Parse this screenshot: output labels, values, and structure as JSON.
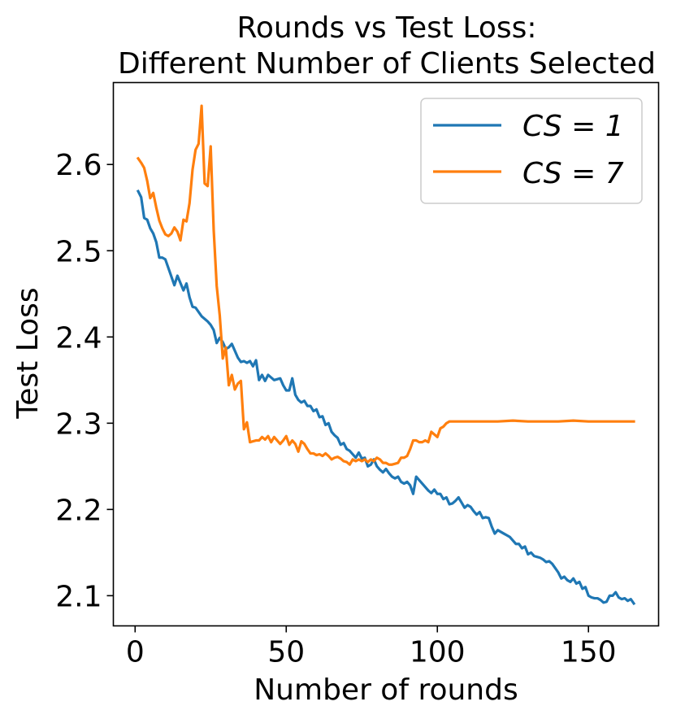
{
  "chart_data": {
    "type": "line",
    "title": "Rounds vs Test Loss:",
    "subtitle": "Different Number of Clients Selected",
    "xlabel": "Number of rounds",
    "ylabel": "Test Loss",
    "xlim": [
      -7.2,
      173.2
    ],
    "ylim": [
      2.065,
      2.695
    ],
    "xticks": [
      0,
      50,
      100,
      150
    ],
    "yticks": [
      2.1,
      2.2,
      2.3,
      2.4,
      2.5,
      2.6
    ],
    "ytick_labels": [
      "2.1",
      "2.2",
      "2.3",
      "2.4",
      "2.5",
      "2.6"
    ],
    "xtick_labels": [
      "0",
      "50",
      "100",
      "150"
    ],
    "grid": false,
    "legend_position": "upper right",
    "series": [
      {
        "name": "CS = 1",
        "color": "#1f77b4",
        "points": [
          [
            1,
            2.569
          ],
          [
            2,
            2.562
          ],
          [
            3,
            2.538
          ],
          [
            4,
            2.536
          ],
          [
            5,
            2.526
          ],
          [
            6,
            2.52
          ],
          [
            7,
            2.51
          ],
          [
            8,
            2.492
          ],
          [
            9,
            2.492
          ],
          [
            10,
            2.49
          ],
          [
            12,
            2.47
          ],
          [
            13,
            2.46
          ],
          [
            14,
            2.471
          ],
          [
            16,
            2.454
          ],
          [
            17,
            2.462
          ],
          [
            18,
            2.446
          ],
          [
            19,
            2.435
          ],
          [
            20,
            2.434
          ],
          [
            22,
            2.424
          ],
          [
            24,
            2.418
          ],
          [
            25,
            2.414
          ],
          [
            26,
            2.408
          ],
          [
            27,
            2.393
          ],
          [
            28,
            2.399
          ],
          [
            29,
            2.394
          ],
          [
            30,
            2.386
          ],
          [
            31,
            2.388
          ],
          [
            32,
            2.392
          ],
          [
            33,
            2.384
          ],
          [
            34,
            2.376
          ],
          [
            35,
            2.371
          ],
          [
            36,
            2.372
          ],
          [
            37,
            2.37
          ],
          [
            38,
            2.372
          ],
          [
            39,
            2.366
          ],
          [
            40,
            2.373
          ],
          [
            41,
            2.35
          ],
          [
            42,
            2.356
          ],
          [
            43,
            2.349
          ],
          [
            44,
            2.356
          ],
          [
            46,
            2.35
          ],
          [
            48,
            2.352
          ],
          [
            49,
            2.344
          ],
          [
            50,
            2.338
          ],
          [
            51,
            2.338
          ],
          [
            52,
            2.352
          ],
          [
            53,
            2.333
          ],
          [
            54,
            2.327
          ],
          [
            55,
            2.324
          ],
          [
            56,
            2.326
          ],
          [
            57,
            2.32
          ],
          [
            58,
            2.32
          ],
          [
            59,
            2.314
          ],
          [
            60,
            2.316
          ],
          [
            61,
            2.307
          ],
          [
            62,
            2.308
          ],
          [
            63,
            2.298
          ],
          [
            64,
            2.3
          ],
          [
            65,
            2.29
          ],
          [
            66,
            2.286
          ],
          [
            67,
            2.283
          ],
          [
            68,
            2.275
          ],
          [
            69,
            2.277
          ],
          [
            70,
            2.27
          ],
          [
            71,
            2.268
          ],
          [
            72,
            2.264
          ],
          [
            73,
            2.26
          ],
          [
            74,
            2.266
          ],
          [
            75,
            2.259
          ],
          [
            76,
            2.26
          ],
          [
            77,
            2.25
          ],
          [
            78,
            2.252
          ],
          [
            79,
            2.258
          ],
          [
            80,
            2.25
          ],
          [
            81,
            2.246
          ],
          [
            82,
            2.243
          ],
          [
            83,
            2.247
          ],
          [
            84,
            2.242
          ],
          [
            85,
            2.238
          ],
          [
            86,
            2.236
          ],
          [
            87,
            2.238
          ],
          [
            88,
            2.232
          ],
          [
            89,
            2.23
          ],
          [
            90,
            2.232
          ],
          [
            91,
            2.228
          ],
          [
            92,
            2.218
          ],
          [
            93,
            2.238
          ],
          [
            94,
            2.234
          ],
          [
            95,
            2.23
          ],
          [
            96,
            2.226
          ],
          [
            97,
            2.222
          ],
          [
            98,
            2.219
          ],
          [
            99,
            2.223
          ],
          [
            100,
            2.218
          ],
          [
            101,
            2.218
          ],
          [
            102,
            2.212
          ],
          [
            103,
            2.214
          ],
          [
            104,
            2.206
          ],
          [
            105,
            2.207
          ],
          [
            106,
            2.21
          ],
          [
            107,
            2.214
          ],
          [
            108,
            2.208
          ],
          [
            109,
            2.202
          ],
          [
            110,
            2.205
          ],
          [
            111,
            2.203
          ],
          [
            112,
            2.198
          ],
          [
            113,
            2.194
          ],
          [
            114,
            2.197
          ],
          [
            115,
            2.19
          ],
          [
            116,
            2.191
          ],
          [
            117,
            2.19
          ],
          [
            118,
            2.18
          ],
          [
            119,
            2.172
          ],
          [
            120,
            2.176
          ],
          [
            121,
            2.174
          ],
          [
            122,
            2.172
          ],
          [
            123,
            2.17
          ],
          [
            124,
            2.168
          ],
          [
            125,
            2.164
          ],
          [
            126,
            2.16
          ],
          [
            127,
            2.16
          ],
          [
            128,
            2.155
          ],
          [
            129,
            2.157
          ],
          [
            130,
            2.148
          ],
          [
            131,
            2.15
          ],
          [
            132,
            2.146
          ],
          [
            133,
            2.145
          ],
          [
            134,
            2.144
          ],
          [
            135,
            2.142
          ],
          [
            136,
            2.139
          ],
          [
            137,
            2.14
          ],
          [
            138,
            2.137
          ],
          [
            139,
            2.132
          ],
          [
            140,
            2.127
          ],
          [
            141,
            2.12
          ],
          [
            142,
            2.122
          ],
          [
            143,
            2.118
          ],
          [
            144,
            2.116
          ],
          [
            145,
            2.12
          ],
          [
            146,
            2.114
          ],
          [
            147,
            2.116
          ],
          [
            148,
            2.108
          ],
          [
            149,
            2.11
          ],
          [
            150,
            2.1
          ],
          [
            151,
            2.098
          ],
          [
            152,
            2.097
          ],
          [
            153,
            2.097
          ],
          [
            154,
            2.095
          ],
          [
            155,
            2.092
          ],
          [
            156,
            2.093
          ],
          [
            157,
            2.1
          ],
          [
            158,
            2.1
          ],
          [
            159,
            2.104
          ],
          [
            160,
            2.098
          ],
          [
            161,
            2.096
          ],
          [
            162,
            2.097
          ],
          [
            163,
            2.094
          ],
          [
            164,
            2.096
          ],
          [
            165,
            2.091
          ]
        ]
      },
      {
        "name": "CS = 7",
        "color": "#ff7f0e",
        "points": [
          [
            1,
            2.607
          ],
          [
            2,
            2.602
          ],
          [
            3,
            2.596
          ],
          [
            4,
            2.581
          ],
          [
            5,
            2.561
          ],
          [
            6,
            2.567
          ],
          [
            7,
            2.55
          ],
          [
            8,
            2.535
          ],
          [
            9,
            2.526
          ],
          [
            10,
            2.519
          ],
          [
            11,
            2.517
          ],
          [
            12,
            2.52
          ],
          [
            13,
            2.527
          ],
          [
            14,
            2.522
          ],
          [
            15,
            2.512
          ],
          [
            16,
            2.536
          ],
          [
            17,
            2.534
          ],
          [
            18,
            2.555
          ],
          [
            19,
            2.594
          ],
          [
            20,
            2.617
          ],
          [
            21,
            2.624
          ],
          [
            22,
            2.668
          ],
          [
            23,
            2.578
          ],
          [
            24,
            2.575
          ],
          [
            25,
            2.621
          ],
          [
            26,
            2.524
          ],
          [
            27,
            2.459
          ],
          [
            28,
            2.425
          ],
          [
            29,
            2.375
          ],
          [
            30,
            2.388
          ],
          [
            31,
            2.344
          ],
          [
            32,
            2.356
          ],
          [
            33,
            2.339
          ],
          [
            34,
            2.346
          ],
          [
            35,
            2.349
          ],
          [
            36,
            2.293
          ],
          [
            37,
            2.301
          ],
          [
            38,
            2.278
          ],
          [
            39,
            2.279
          ],
          [
            40,
            2.28
          ],
          [
            41,
            2.28
          ],
          [
            42,
            2.284
          ],
          [
            43,
            2.281
          ],
          [
            44,
            2.285
          ],
          [
            45,
            2.278
          ],
          [
            46,
            2.284
          ],
          [
            47,
            2.28
          ],
          [
            48,
            2.276
          ],
          [
            49,
            2.28
          ],
          [
            50,
            2.285
          ],
          [
            51,
            2.275
          ],
          [
            52,
            2.28
          ],
          [
            53,
            2.276
          ],
          [
            54,
            2.267
          ],
          [
            55,
            2.279
          ],
          [
            56,
            2.276
          ],
          [
            57,
            2.27
          ],
          [
            58,
            2.265
          ],
          [
            59,
            2.265
          ],
          [
            60,
            2.263
          ],
          [
            61,
            2.264
          ],
          [
            62,
            2.262
          ],
          [
            63,
            2.265
          ],
          [
            64,
            2.262
          ],
          [
            65,
            2.258
          ],
          [
            66,
            2.26
          ],
          [
            67,
            2.261
          ],
          [
            68,
            2.259
          ],
          [
            69,
            2.256
          ],
          [
            70,
            2.255
          ],
          [
            71,
            2.252
          ],
          [
            72,
            2.258
          ],
          [
            73,
            2.256
          ],
          [
            74,
            2.258
          ],
          [
            75,
            2.256
          ],
          [
            76,
            2.258
          ],
          [
            77,
            2.255
          ],
          [
            78,
            2.258
          ],
          [
            79,
            2.256
          ],
          [
            80,
            2.26
          ],
          [
            81,
            2.258
          ],
          [
            82,
            2.254
          ],
          [
            83,
            2.254
          ],
          [
            84,
            2.252
          ],
          [
            85,
            2.252
          ],
          [
            86,
            2.253
          ],
          [
            87,
            2.254
          ],
          [
            88,
            2.26
          ],
          [
            89,
            2.26
          ],
          [
            90,
            2.262
          ],
          [
            91,
            2.27
          ],
          [
            92,
            2.28
          ],
          [
            93,
            2.28
          ],
          [
            94,
            2.278
          ],
          [
            95,
            2.278
          ],
          [
            96,
            2.28
          ],
          [
            97,
            2.278
          ],
          [
            98,
            2.29
          ],
          [
            99,
            2.287
          ],
          [
            100,
            2.284
          ],
          [
            101,
            2.294
          ],
          [
            102,
            2.296
          ],
          [
            103,
            2.3
          ],
          [
            104,
            2.302
          ],
          [
            106,
            2.302
          ],
          [
            110,
            2.302
          ],
          [
            120,
            2.302
          ],
          [
            125,
            2.303
          ],
          [
            130,
            2.302
          ],
          [
            135,
            2.302
          ],
          [
            140,
            2.302
          ],
          [
            145,
            2.303
          ],
          [
            150,
            2.302
          ],
          [
            155,
            2.302
          ],
          [
            160,
            2.302
          ],
          [
            165,
            2.302
          ]
        ]
      }
    ]
  }
}
